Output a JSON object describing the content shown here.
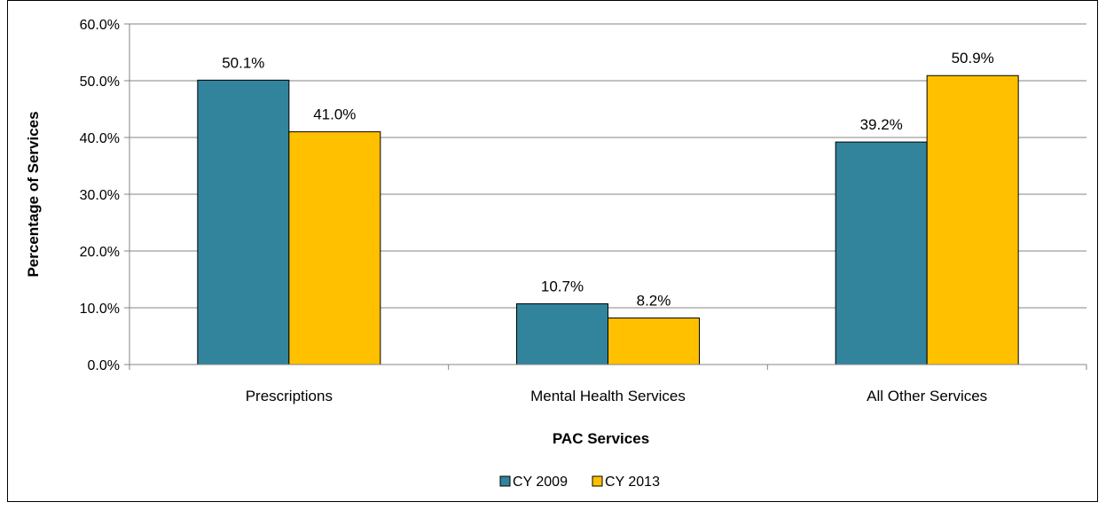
{
  "chart_data": {
    "type": "bar",
    "title": "",
    "xlabel": "PAC Services",
    "ylabel": "Percentage of Services",
    "categories": [
      "Prescriptions",
      "Mental Health Services",
      "All Other Services"
    ],
    "series": [
      {
        "name": "CY 2009",
        "values": [
          50.1,
          10.7,
          39.2
        ],
        "labels": [
          "50.1%",
          "10.7%",
          "39.2%"
        ],
        "color": "#31849B"
      },
      {
        "name": "CY 2013",
        "values": [
          41.0,
          8.2,
          50.9
        ],
        "labels": [
          "41.0%",
          "8.2%",
          "50.9%"
        ],
        "color": "#FFC000"
      }
    ],
    "ylim": [
      0,
      60
    ],
    "yticks": [
      "0.0%",
      "10.0%",
      "20.0%",
      "30.0%",
      "40.0%",
      "50.0%",
      "60.0%"
    ],
    "grid": true,
    "legend_position": "bottom"
  }
}
